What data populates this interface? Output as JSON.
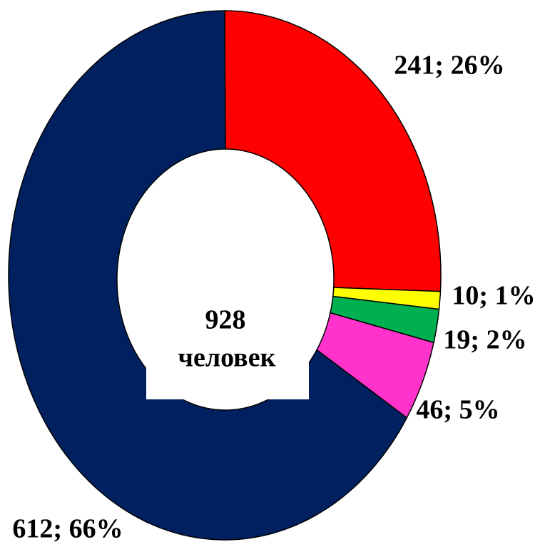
{
  "chart_data": {
    "type": "donut",
    "categories": [
      null,
      null,
      null,
      null,
      null
    ],
    "values": [
      241,
      10,
      19,
      46,
      612
    ],
    "value_labels": [
      "241; 26%",
      "10; 1%",
      "19; 2%",
      "46; 5%",
      "612; 66%"
    ],
    "colors": [
      "#ff0000",
      "#ffff00",
      "#00b050",
      "#ff33cc",
      "#002060"
    ],
    "total": 928,
    "center_label": "человек"
  }
}
